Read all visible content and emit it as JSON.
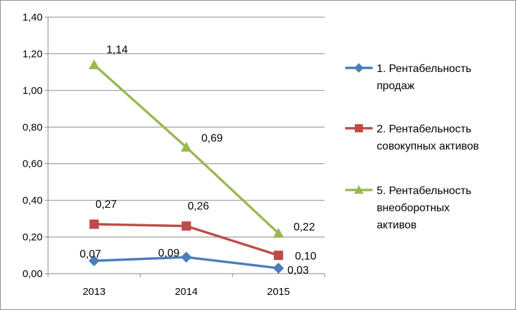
{
  "chart_data": {
    "type": "line",
    "categories": [
      "2013",
      "2014",
      "2015"
    ],
    "ylim": [
      0,
      1.4
    ],
    "yticks": [
      "0,00",
      "0,20",
      "0,40",
      "0,60",
      "0,80",
      "1,00",
      "1,20",
      "1,40"
    ],
    "grid": true,
    "legend_position": "right",
    "series": [
      {
        "name": "1. Рентабельность продаж",
        "legend_lines": [
          "1. Рентабельность",
          "продаж"
        ],
        "values": [
          0.07,
          0.09,
          0.03
        ],
        "labels": [
          "0,07",
          "0,09",
          "0,03"
        ],
        "color": "#4a7ebb",
        "marker": "diamond"
      },
      {
        "name": "2. Рентабельность совокупных активов",
        "legend_lines": [
          "2. Рентабельность",
          "совокупных активов"
        ],
        "values": [
          0.27,
          0.26,
          0.1
        ],
        "labels": [
          "0,27",
          "0,26",
          "0,10"
        ],
        "color": "#be4b48",
        "marker": "square"
      },
      {
        "name": "5. Рентабельность внеоборотных активов",
        "legend_lines": [
          "5. Рентабельность",
          "внеоборотных",
          "активов"
        ],
        "values": [
          1.14,
          0.69,
          0.22
        ],
        "labels": [
          "1,14",
          "0,69",
          "0,22"
        ],
        "color": "#98b954",
        "marker": "triangle"
      }
    ]
  }
}
